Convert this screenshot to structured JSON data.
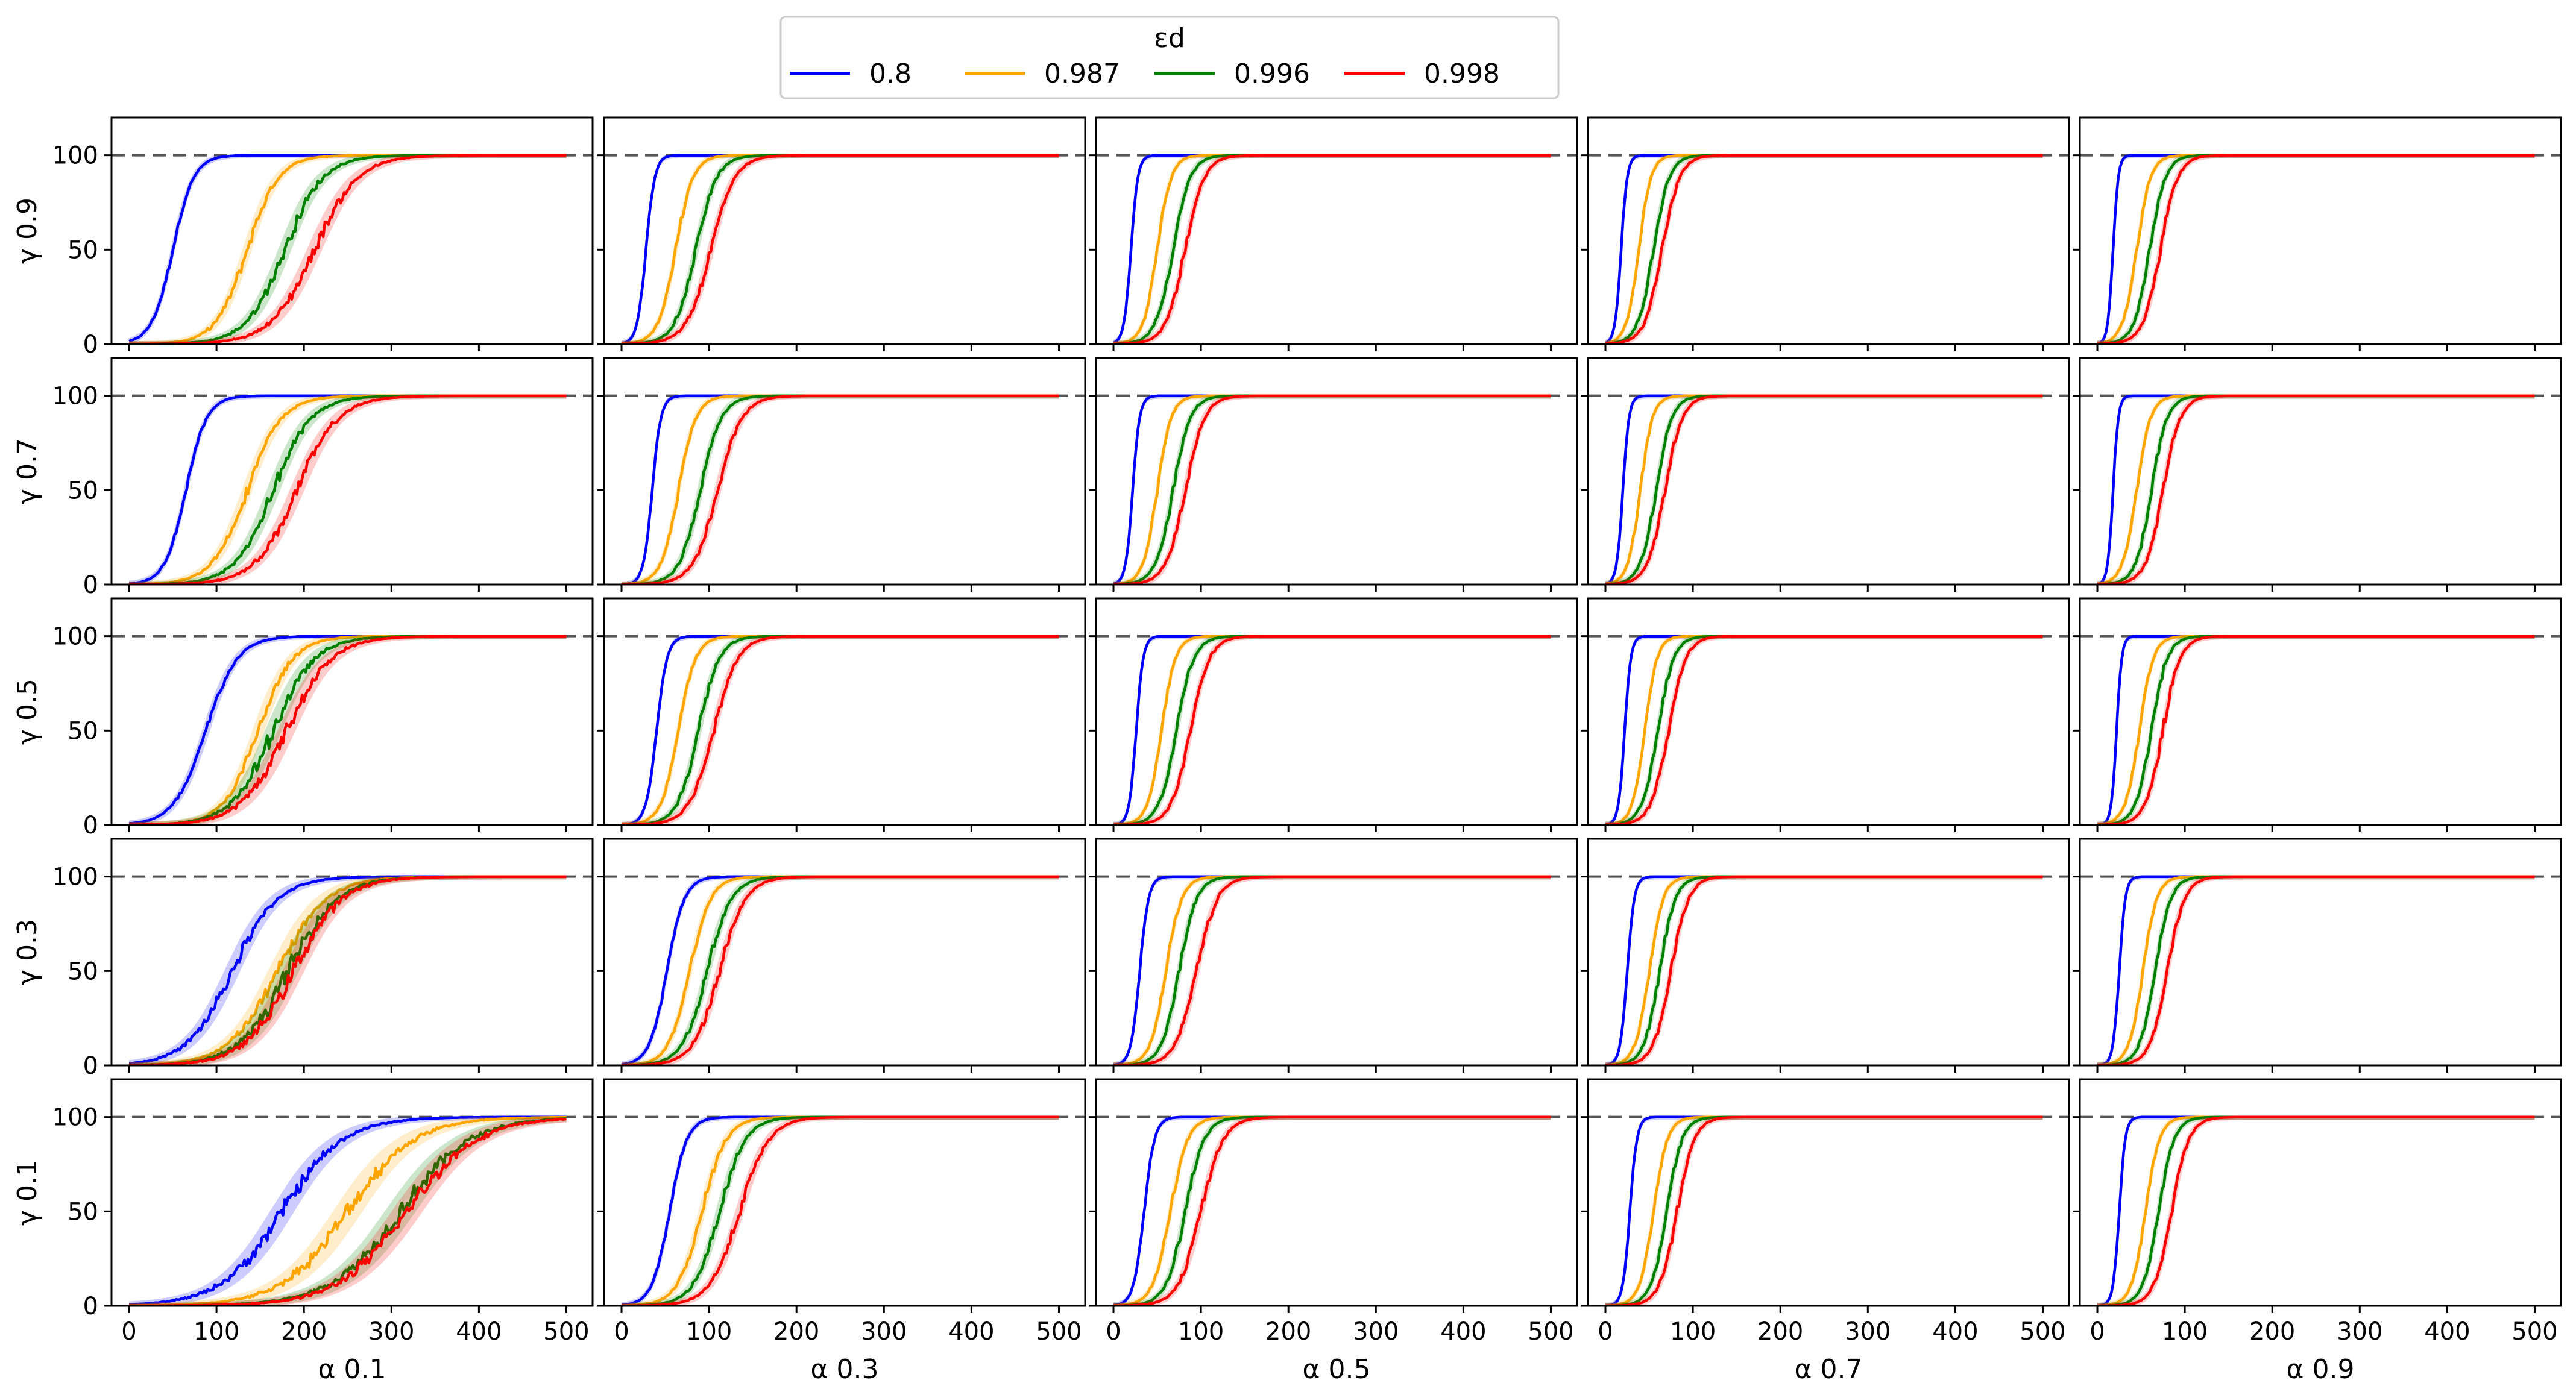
{
  "chart_data": {
    "type": "line",
    "grid": false,
    "rows": 5,
    "cols": 5,
    "x_ticks": [
      0,
      100,
      200,
      300,
      400,
      500
    ],
    "y_ticks": [
      0,
      50,
      100
    ],
    "xlim": [
      -20,
      530
    ],
    "ylim": [
      0,
      120
    ],
    "reference_line": {
      "y": 100,
      "style": "dashed",
      "color": "#555555"
    },
    "legend": {
      "title": "εd",
      "placement": "top-center",
      "entries": [
        {
          "label": "0.8",
          "color": "#0000ff"
        },
        {
          "label": "0.987",
          "color": "#ffa500"
        },
        {
          "label": "0.996",
          "color": "#008000"
        },
        {
          "label": "0.998",
          "color": "#ff0000"
        }
      ]
    },
    "row_labels": [
      "γ 0.9",
      "γ 0.7",
      "γ 0.5",
      "γ 0.3",
      "γ 0.1"
    ],
    "col_labels": [
      "α 0.1",
      "α 0.3",
      "α 0.5",
      "α 0.7",
      "α 0.9"
    ],
    "series_model": "logistic sigmoid from 0 to 100; midpoint = x where value reaches 50, width = slope scale; noise = visual jitter amplitude",
    "panels": [
      [
        {
          "row": "γ 0.9",
          "col": "α 0.1",
          "series": [
            {
              "name": "0.8",
              "midpoint": 50,
              "width": 12,
              "noise": 1.5
            },
            {
              "name": "0.987",
              "midpoint": 135,
              "width": 18,
              "noise": 2.5
            },
            {
              "name": "0.996",
              "midpoint": 178,
              "width": 22,
              "noise": 3
            },
            {
              "name": "0.998",
              "midpoint": 212,
              "width": 25,
              "noise": 3
            }
          ]
        },
        {
          "row": "γ 0.9",
          "col": "α 0.3",
          "series": [
            {
              "name": "0.8",
              "midpoint": 28,
              "width": 5,
              "noise": 1
            },
            {
              "name": "0.987",
              "midpoint": 62,
              "width": 10,
              "noise": 2
            },
            {
              "name": "0.996",
              "midpoint": 85,
              "width": 12,
              "noise": 2.5
            },
            {
              "name": "0.998",
              "midpoint": 102,
              "width": 14,
              "noise": 2.5
            }
          ]
        },
        {
          "row": "γ 0.9",
          "col": "α 0.5",
          "series": [
            {
              "name": "0.8",
              "midpoint": 20,
              "width": 4,
              "noise": 1
            },
            {
              "name": "0.987",
              "midpoint": 50,
              "width": 8,
              "noise": 2
            },
            {
              "name": "0.996",
              "midpoint": 68,
              "width": 10,
              "noise": 2.5
            },
            {
              "name": "0.998",
              "midpoint": 82,
              "width": 11,
              "noise": 2.5
            }
          ]
        },
        {
          "row": "γ 0.9",
          "col": "α 0.7",
          "series": [
            {
              "name": "0.8",
              "midpoint": 18,
              "width": 3.5,
              "noise": 1
            },
            {
              "name": "0.987",
              "midpoint": 38,
              "width": 7,
              "noise": 2
            },
            {
              "name": "0.996",
              "midpoint": 55,
              "width": 9,
              "noise": 2.5
            },
            {
              "name": "0.998",
              "midpoint": 65,
              "width": 10,
              "noise": 2.5
            }
          ]
        },
        {
          "row": "γ 0.9",
          "col": "α 0.9",
          "series": [
            {
              "name": "0.8",
              "midpoint": 18,
              "width": 3,
              "noise": 1
            },
            {
              "name": "0.987",
              "midpoint": 45,
              "width": 8,
              "noise": 2
            },
            {
              "name": "0.996",
              "midpoint": 60,
              "width": 9,
              "noise": 2.5
            },
            {
              "name": "0.998",
              "midpoint": 72,
              "width": 10,
              "noise": 2.5
            }
          ]
        }
      ],
      [
        {
          "row": "γ 0.7",
          "col": "α 0.1",
          "series": [
            {
              "name": "0.8",
              "midpoint": 65,
              "width": 12,
              "noise": 1.5
            },
            {
              "name": "0.987",
              "midpoint": 135,
              "width": 20,
              "noise": 2.5
            },
            {
              "name": "0.996",
              "midpoint": 165,
              "width": 22,
              "noise": 3
            },
            {
              "name": "0.998",
              "midpoint": 192,
              "width": 24,
              "noise": 3
            }
          ]
        },
        {
          "row": "γ 0.7",
          "col": "α 0.3",
          "series": [
            {
              "name": "0.8",
              "midpoint": 35,
              "width": 5,
              "noise": 1
            },
            {
              "name": "0.987",
              "midpoint": 65,
              "width": 10,
              "noise": 2
            },
            {
              "name": "0.996",
              "midpoint": 90,
              "width": 12,
              "noise": 2.5
            },
            {
              "name": "0.998",
              "midpoint": 110,
              "width": 14,
              "noise": 2.5
            }
          ]
        },
        {
          "row": "γ 0.7",
          "col": "α 0.5",
          "series": [
            {
              "name": "0.8",
              "midpoint": 22,
              "width": 4,
              "noise": 1
            },
            {
              "name": "0.987",
              "midpoint": 50,
              "width": 8,
              "noise": 2
            },
            {
              "name": "0.996",
              "midpoint": 68,
              "width": 10,
              "noise": 2.5
            },
            {
              "name": "0.998",
              "midpoint": 82,
              "width": 11,
              "noise": 2.5
            }
          ]
        },
        {
          "row": "γ 0.7",
          "col": "α 0.7",
          "series": [
            {
              "name": "0.8",
              "midpoint": 20,
              "width": 3.5,
              "noise": 1
            },
            {
              "name": "0.987",
              "midpoint": 40,
              "width": 7,
              "noise": 2
            },
            {
              "name": "0.996",
              "midpoint": 58,
              "width": 9,
              "noise": 2.5
            },
            {
              "name": "0.998",
              "midpoint": 68,
              "width": 10,
              "noise": 2.5
            }
          ]
        },
        {
          "row": "γ 0.7",
          "col": "α 0.9",
          "series": [
            {
              "name": "0.8",
              "midpoint": 18,
              "width": 3,
              "noise": 1
            },
            {
              "name": "0.987",
              "midpoint": 45,
              "width": 8,
              "noise": 2
            },
            {
              "name": "0.996",
              "midpoint": 62,
              "width": 9,
              "noise": 2.5
            },
            {
              "name": "0.998",
              "midpoint": 75,
              "width": 10,
              "noise": 2.5
            }
          ]
        }
      ],
      [
        {
          "row": "γ 0.5",
          "col": "α 0.1",
          "series": [
            {
              "name": "0.8",
              "midpoint": 88,
              "width": 18,
              "noise": 2
            },
            {
              "name": "0.987",
              "midpoint": 148,
              "width": 20,
              "noise": 3
            },
            {
              "name": "0.996",
              "midpoint": 165,
              "width": 24,
              "noise": 3.5
            },
            {
              "name": "0.998",
              "midpoint": 180,
              "width": 26,
              "noise": 3.5
            }
          ]
        },
        {
          "row": "γ 0.5",
          "col": "α 0.3",
          "series": [
            {
              "name": "0.8",
              "midpoint": 40,
              "width": 6,
              "noise": 1
            },
            {
              "name": "0.987",
              "midpoint": 65,
              "width": 10,
              "noise": 2
            },
            {
              "name": "0.996",
              "midpoint": 88,
              "width": 12,
              "noise": 2.5
            },
            {
              "name": "0.998",
              "midpoint": 105,
              "width": 14,
              "noise": 2.5
            }
          ]
        },
        {
          "row": "γ 0.5",
          "col": "α 0.5",
          "series": [
            {
              "name": "0.8",
              "midpoint": 26,
              "width": 4,
              "noise": 1
            },
            {
              "name": "0.987",
              "midpoint": 55,
              "width": 8,
              "noise": 2
            },
            {
              "name": "0.996",
              "midpoint": 72,
              "width": 10,
              "noise": 2.5
            },
            {
              "name": "0.998",
              "midpoint": 88,
              "width": 11,
              "noise": 2.5
            }
          ]
        },
        {
          "row": "γ 0.5",
          "col": "α 0.7",
          "series": [
            {
              "name": "0.8",
              "midpoint": 22,
              "width": 3.5,
              "noise": 1
            },
            {
              "name": "0.987",
              "midpoint": 45,
              "width": 7,
              "noise": 2
            },
            {
              "name": "0.996",
              "midpoint": 60,
              "width": 9,
              "noise": 2.5
            },
            {
              "name": "0.998",
              "midpoint": 72,
              "width": 10,
              "noise": 2.5
            }
          ]
        },
        {
          "row": "γ 0.5",
          "col": "α 0.9",
          "series": [
            {
              "name": "0.8",
              "midpoint": 22,
              "width": 3,
              "noise": 1
            },
            {
              "name": "0.987",
              "midpoint": 48,
              "width": 8,
              "noise": 2
            },
            {
              "name": "0.996",
              "midpoint": 62,
              "width": 9,
              "noise": 2.5
            },
            {
              "name": "0.998",
              "midpoint": 75,
              "width": 10,
              "noise": 2.5
            }
          ]
        }
      ],
      [
        {
          "row": "γ 0.3",
          "col": "α 0.1",
          "series": [
            {
              "name": "0.8",
              "midpoint": 118,
              "width": 26,
              "noise": 3
            },
            {
              "name": "0.987",
              "midpoint": 170,
              "width": 28,
              "noise": 3.5
            },
            {
              "name": "0.996",
              "midpoint": 182,
              "width": 28,
              "noise": 4
            },
            {
              "name": "0.998",
              "midpoint": 188,
              "width": 28,
              "noise": 4
            }
          ]
        },
        {
          "row": "γ 0.3",
          "col": "α 0.3",
          "series": [
            {
              "name": "0.8",
              "midpoint": 52,
              "width": 10,
              "noise": 1.5
            },
            {
              "name": "0.987",
              "midpoint": 78,
              "width": 12,
              "noise": 2
            },
            {
              "name": "0.996",
              "midpoint": 98,
              "width": 14,
              "noise": 2.5
            },
            {
              "name": "0.998",
              "midpoint": 112,
              "width": 15,
              "noise": 2.5
            }
          ]
        },
        {
          "row": "γ 0.3",
          "col": "α 0.5",
          "series": [
            {
              "name": "0.8",
              "midpoint": 30,
              "width": 5,
              "noise": 1
            },
            {
              "name": "0.987",
              "midpoint": 60,
              "width": 9,
              "noise": 2
            },
            {
              "name": "0.996",
              "midpoint": 75,
              "width": 10,
              "noise": 2.5
            },
            {
              "name": "0.998",
              "midpoint": 95,
              "width": 12,
              "noise": 2.5
            }
          ]
        },
        {
          "row": "γ 0.3",
          "col": "α 0.7",
          "series": [
            {
              "name": "0.8",
              "midpoint": 25,
              "width": 4,
              "noise": 1
            },
            {
              "name": "0.987",
              "midpoint": 50,
              "width": 8,
              "noise": 2
            },
            {
              "name": "0.996",
              "midpoint": 62,
              "width": 9,
              "noise": 2.5
            },
            {
              "name": "0.998",
              "midpoint": 75,
              "width": 10,
              "noise": 2.5
            }
          ]
        },
        {
          "row": "γ 0.3",
          "col": "α 0.9",
          "series": [
            {
              "name": "0.8",
              "midpoint": 25,
              "width": 3.5,
              "noise": 1
            },
            {
              "name": "0.987",
              "midpoint": 52,
              "width": 8,
              "noise": 2
            },
            {
              "name": "0.996",
              "midpoint": 66,
              "width": 9,
              "noise": 2.5
            },
            {
              "name": "0.998",
              "midpoint": 80,
              "width": 10,
              "noise": 2.5
            }
          ]
        }
      ],
      [
        {
          "row": "γ 0.1",
          "col": "α 0.1",
          "series": [
            {
              "name": "0.8",
              "midpoint": 175,
              "width": 35,
              "noise": 3.5
            },
            {
              "name": "0.987",
              "midpoint": 250,
              "width": 38,
              "noise": 4
            },
            {
              "name": "0.996",
              "midpoint": 310,
              "width": 40,
              "noise": 4
            },
            {
              "name": "0.998",
              "midpoint": 318,
              "width": 40,
              "noise": 4
            }
          ]
        },
        {
          "row": "γ 0.1",
          "col": "α 0.3",
          "series": [
            {
              "name": "0.8",
              "midpoint": 55,
              "width": 10,
              "noise": 1.5
            },
            {
              "name": "0.987",
              "midpoint": 92,
              "width": 14,
              "noise": 2.5
            },
            {
              "name": "0.996",
              "midpoint": 112,
              "width": 15,
              "noise": 2.5
            },
            {
              "name": "0.998",
              "midpoint": 135,
              "width": 17,
              "noise": 2.5
            }
          ]
        },
        {
          "row": "γ 0.1",
          "col": "α 0.5",
          "series": [
            {
              "name": "0.8",
              "midpoint": 35,
              "width": 6,
              "noise": 1
            },
            {
              "name": "0.987",
              "midpoint": 65,
              "width": 10,
              "noise": 2
            },
            {
              "name": "0.996",
              "midpoint": 82,
              "width": 11,
              "noise": 2.5
            },
            {
              "name": "0.998",
              "midpoint": 100,
              "width": 13,
              "noise": 2.5
            }
          ]
        },
        {
          "row": "γ 0.1",
          "col": "α 0.7",
          "series": [
            {
              "name": "0.8",
              "midpoint": 28,
              "width": 4,
              "noise": 1
            },
            {
              "name": "0.987",
              "midpoint": 55,
              "width": 8,
              "noise": 2
            },
            {
              "name": "0.996",
              "midpoint": 70,
              "width": 9,
              "noise": 2.5
            },
            {
              "name": "0.998",
              "midpoint": 82,
              "width": 10,
              "noise": 2.5
            }
          ]
        },
        {
          "row": "γ 0.1",
          "col": "α 0.9",
          "series": [
            {
              "name": "0.8",
              "midpoint": 25,
              "width": 3.5,
              "noise": 1
            },
            {
              "name": "0.987",
              "midpoint": 55,
              "width": 8,
              "noise": 2
            },
            {
              "name": "0.996",
              "midpoint": 70,
              "width": 9,
              "noise": 2.5
            },
            {
              "name": "0.998",
              "midpoint": 85,
              "width": 10,
              "noise": 2.5
            }
          ]
        }
      ]
    ]
  }
}
